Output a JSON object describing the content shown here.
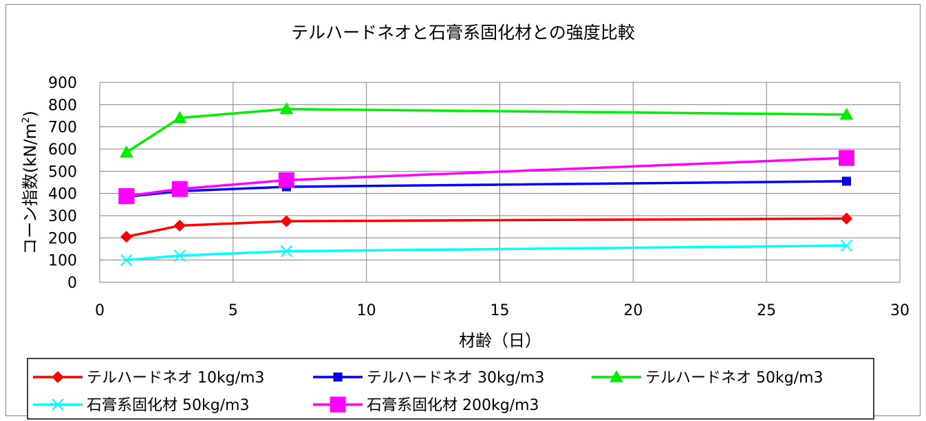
{
  "chart_data": {
    "type": "line",
    "title": "テルハードネオと石膏系固化材との強度比較",
    "xlabel": "材齢（日）",
    "ylabel_main": "コーン指数(kN/m",
    "ylabel_sup": "2",
    "ylabel_close": ")",
    "xlim": [
      0,
      30
    ],
    "ylim": [
      0,
      900
    ],
    "xticks": [
      0,
      5,
      10,
      15,
      20,
      25,
      30
    ],
    "yticks": [
      0,
      100,
      200,
      300,
      400,
      500,
      600,
      700,
      800,
      900
    ],
    "grid": true,
    "legend_position": "bottom",
    "x": [
      1,
      3,
      7,
      28
    ],
    "series": [
      {
        "name": "テルハードネオ 10kg/m3",
        "color": "#ff0000",
        "marker": "diamond",
        "values": [
          205,
          255,
          275,
          287
        ]
      },
      {
        "name": "テルハードネオ 30kg/m3",
        "color": "#0000ff",
        "marker": "square",
        "values": [
          385,
          410,
          430,
          455
        ]
      },
      {
        "name": "テルハードネオ 50kg/m3",
        "color": "#00ee00",
        "marker": "triangle",
        "values": [
          585,
          740,
          780,
          755
        ]
      },
      {
        "name": "石膏系固化材 50kg/m3",
        "color": "#00ffff",
        "marker": "x",
        "values": [
          100,
          120,
          140,
          165
        ]
      },
      {
        "name": "石膏系固化材 200kg/m3",
        "color": "#ff00ff",
        "marker": "bigsquare",
        "values": [
          388,
          420,
          460,
          560
        ]
      }
    ]
  }
}
